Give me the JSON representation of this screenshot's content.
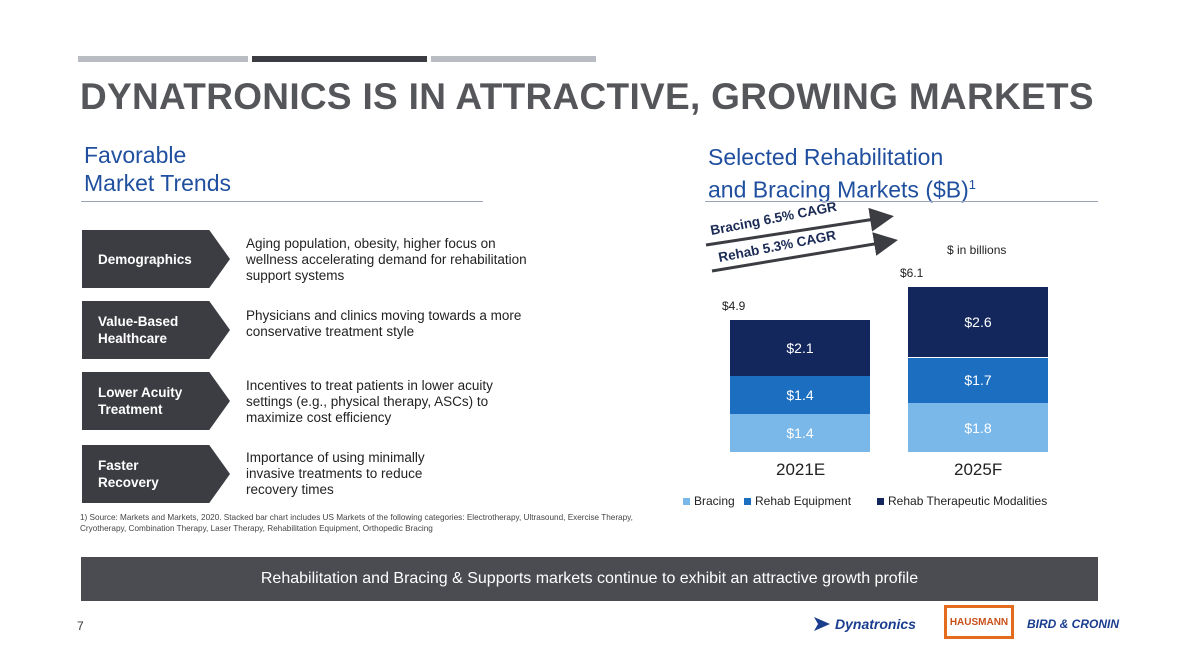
{
  "header": {
    "title": "DYNATRONICS IS IN ATTRACTIVE, GROWING MARKETS"
  },
  "left": {
    "title_line1": "Favorable",
    "title_line2": "Market Trends",
    "trends": [
      {
        "label_l1": "Demographics",
        "label_l2": "",
        "text": "Aging population, obesity, higher focus on wellness accelerating demand for rehabilitation support systems"
      },
      {
        "label_l1": "Value-Based",
        "label_l2": "Healthcare",
        "text": "Physicians and clinics moving towards a more conservative treatment style"
      },
      {
        "label_l1": "Lower Acuity",
        "label_l2": "Treatment",
        "text": "Incentives to treat patients in lower acuity settings (e.g., physical therapy, ASCs) to maximize cost efficiency"
      },
      {
        "label_l1": "Faster",
        "label_l2": "Recovery",
        "text": "Importance of using minimally invasive treatments to reduce recovery times"
      }
    ],
    "footnote": "1) Source: Markets and Markets, 2020. Stacked bar chart includes US Markets of the following categories: Electrotherapy, Ultrasound, Exercise Therapy, Cryotherapy, Combination Therapy, Laser Therapy, Rehabilitation Equipment, Orthopedic Bracing"
  },
  "right": {
    "title_line1": "Selected Rehabilitation",
    "title_line2": "and Bracing Markets ($B)",
    "title_sup": "1",
    "units_note": "$ in billions",
    "cagr_bracing": "Bracing 6.5% CAGR",
    "cagr_rehab": "Rehab 5.3% CAGR"
  },
  "chart_data": {
    "type": "bar",
    "stacked": true,
    "categories": [
      "2021E",
      "2025F"
    ],
    "totals": [
      4.9,
      6.1
    ],
    "total_labels": [
      "$4.9",
      "$6.1"
    ],
    "series": [
      {
        "name": "Bracing",
        "values": [
          1.4,
          1.8
        ],
        "labels": [
          "$1.4",
          "$1.8"
        ],
        "color": "#7ab8ea"
      },
      {
        "name": "Rehab Equipment",
        "values": [
          1.4,
          1.7
        ],
        "labels": [
          "$1.4",
          "$1.7"
        ],
        "color": "#1c6ec0"
      },
      {
        "name": "Rehab Therapeutic Modalities",
        "values": [
          2.1,
          2.6
        ],
        "labels": [
          "$2.1",
          "$2.6"
        ],
        "color": "#13275c"
      }
    ],
    "legend_position": "bottom"
  },
  "banner": {
    "text": "Rehabilitation and Bracing & Supports markets continue to exhibit an attractive growth profile"
  },
  "footer": {
    "page_number": "7",
    "logo_dynatronics": "Dynatronics",
    "logo_hausmann": "HAUSMANN",
    "logo_bird_cronin": "BIRD & CRONIN"
  },
  "colors": {
    "title_gray": "#55565a",
    "accent_blue": "#1f4f9e",
    "dark_box": "#3b3d42",
    "banner": "#4a4c51"
  }
}
